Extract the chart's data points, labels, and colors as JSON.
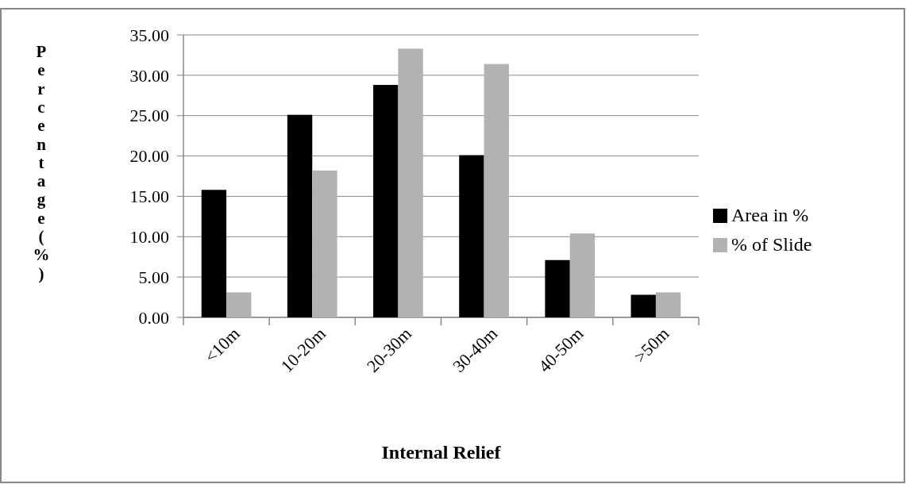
{
  "chart_data": {
    "type": "bar",
    "xlabel": "Internal Relief",
    "ylabel": "Percentage (%)",
    "categories": [
      "<10m",
      "10-20m",
      "20-30m",
      "30-40m",
      "40-50m",
      ">50m"
    ],
    "series": [
      {
        "name": "Area in %",
        "color": "#000000",
        "values": [
          15.8,
          25.1,
          28.8,
          20.1,
          7.1,
          2.8
        ]
      },
      {
        "name": "% of Slide",
        "color": "#b2b2b2",
        "values": [
          3.1,
          18.2,
          33.3,
          31.4,
          10.4,
          3.1
        ]
      }
    ],
    "ylim": [
      0,
      35
    ],
    "yticks": [
      {
        "value": 0,
        "label": "0.00"
      },
      {
        "value": 5,
        "label": "5.00"
      },
      {
        "value": 10,
        "label": "10.00"
      },
      {
        "value": 15,
        "label": "15.00"
      },
      {
        "value": 20,
        "label": "20.00"
      },
      {
        "value": 25,
        "label": "25.00"
      },
      {
        "value": 30,
        "label": "30.00"
      },
      {
        "value": 35,
        "label": "35.00"
      }
    ],
    "grid": "y",
    "legend": "right"
  }
}
